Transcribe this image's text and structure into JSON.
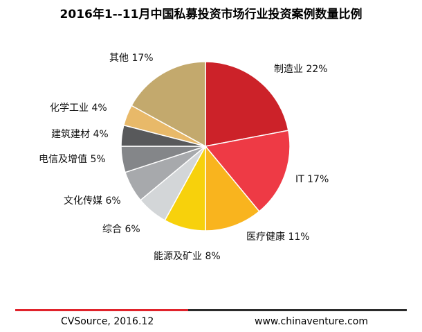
{
  "chart_data": {
    "type": "pie",
    "title": "2016年1--11月中国私募投资市场行业投资案例数量比例",
    "slices": [
      {
        "label": "制造业 22%",
        "value": 22,
        "color": "#cc2229"
      },
      {
        "label": "IT 17%",
        "value": 17,
        "color": "#ee3a45"
      },
      {
        "label": "医疗健康 11%",
        "value": 11,
        "color": "#f9b41e"
      },
      {
        "label": "能源及矿业 8%",
        "value": 8,
        "color": "#f7d10c"
      },
      {
        "label": "综合 6%",
        "value": 6,
        "color": "#d3d6d8"
      },
      {
        "label": "文化传媒 6%",
        "value": 6,
        "color": "#a7a9ac"
      },
      {
        "label": "电信及增值 5%",
        "value": 5,
        "color": "#848689"
      },
      {
        "label": "建筑建材 4%",
        "value": 4,
        "color": "#58595b"
      },
      {
        "label": "化学工业 4%",
        "value": 4,
        "color": "#e8b969"
      },
      {
        "label": "其他 17%",
        "value": 17,
        "color": "#c3a96d"
      }
    ]
  },
  "footer": {
    "source": "CVSource, 2016.12",
    "website": "www.chinaventure.com"
  }
}
